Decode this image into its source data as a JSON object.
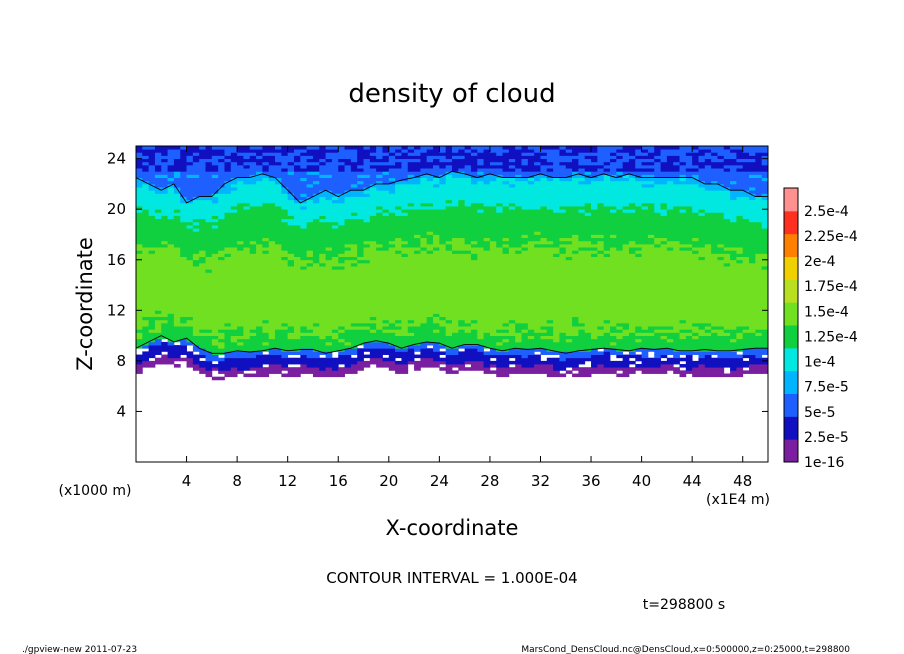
{
  "chart_data": {
    "type": "heatmap",
    "title": "density of cloud",
    "xlabel": "X-coordinate",
    "ylabel": "Z-coordinate",
    "x_unit_label": "(x1E4 m)",
    "y_unit_label": "(x1000 m)",
    "xlim": [
      0,
      50
    ],
    "ylim": [
      0,
      25
    ],
    "x_ticks": [
      4,
      8,
      12,
      16,
      20,
      24,
      28,
      32,
      36,
      40,
      44,
      48
    ],
    "y_ticks": [
      4,
      8,
      12,
      16,
      20,
      24
    ],
    "colorbar": {
      "labels": [
        "1e-16",
        "2.5e-5",
        "5e-5",
        "7.5e-5",
        "1e-4",
        "1.25e-4",
        "1.5e-4",
        "1.75e-4",
        "2e-4",
        "2.25e-4",
        "2.5e-4"
      ],
      "colors": [
        "#7a1fa0",
        "#1010c0",
        "#1e60ff",
        "#00b4ff",
        "#00e8e0",
        "#10d040",
        "#70e020",
        "#b8e020",
        "#f0d000",
        "#ff8000",
        "#ff3020",
        "#ff9090"
      ]
    },
    "cloud_top_z": [
      22.5,
      22.0,
      21.5,
      22.0,
      20.5,
      21.0,
      21.0,
      22.0,
      22.5,
      22.5,
      22.8,
      22.5,
      21.5,
      20.5,
      21.0,
      21.5,
      21.0,
      21.5,
      21.5,
      22.0,
      22.0,
      22.3,
      22.5,
      22.8,
      22.5,
      23.0,
      22.8,
      22.5,
      22.8,
      22.5,
      22.5,
      22.5,
      22.8,
      22.5,
      22.5,
      22.8,
      22.5,
      22.8,
      22.5,
      22.8,
      22.5,
      22.5,
      22.5,
      22.5,
      22.5,
      22.0,
      22.0,
      21.5,
      21.5,
      21.0,
      21.0
    ],
    "cloud_base_z": [
      9.0,
      9.5,
      10.0,
      9.5,
      9.8,
      9.0,
      8.6,
      8.6,
      8.8,
      8.7,
      8.8,
      9.0,
      8.8,
      8.9,
      8.9,
      8.6,
      8.8,
      9.0,
      9.4,
      9.6,
      9.4,
      9.0,
      9.3,
      9.5,
      9.4,
      9.0,
      9.3,
      9.3,
      9.0,
      8.8,
      9.0,
      8.9,
      9.0,
      8.8,
      8.6,
      8.8,
      8.9,
      9.0,
      8.9,
      8.8,
      9.0,
      8.9,
      9.0,
      8.8,
      8.8,
      8.9,
      8.8,
      8.8,
      8.9,
      9.0,
      9.0
    ],
    "max_core_density": 0.00016,
    "contour_interval_text": "CONTOUR INTERVAL = 1.000E-04",
    "time_text": "t=298800 s"
  },
  "footer": {
    "left": "./gpview-new   2011-07-23",
    "right": "MarsCond_DensCloud.nc@DensCloud,x=0:500000,z=0:25000,t=298800"
  }
}
